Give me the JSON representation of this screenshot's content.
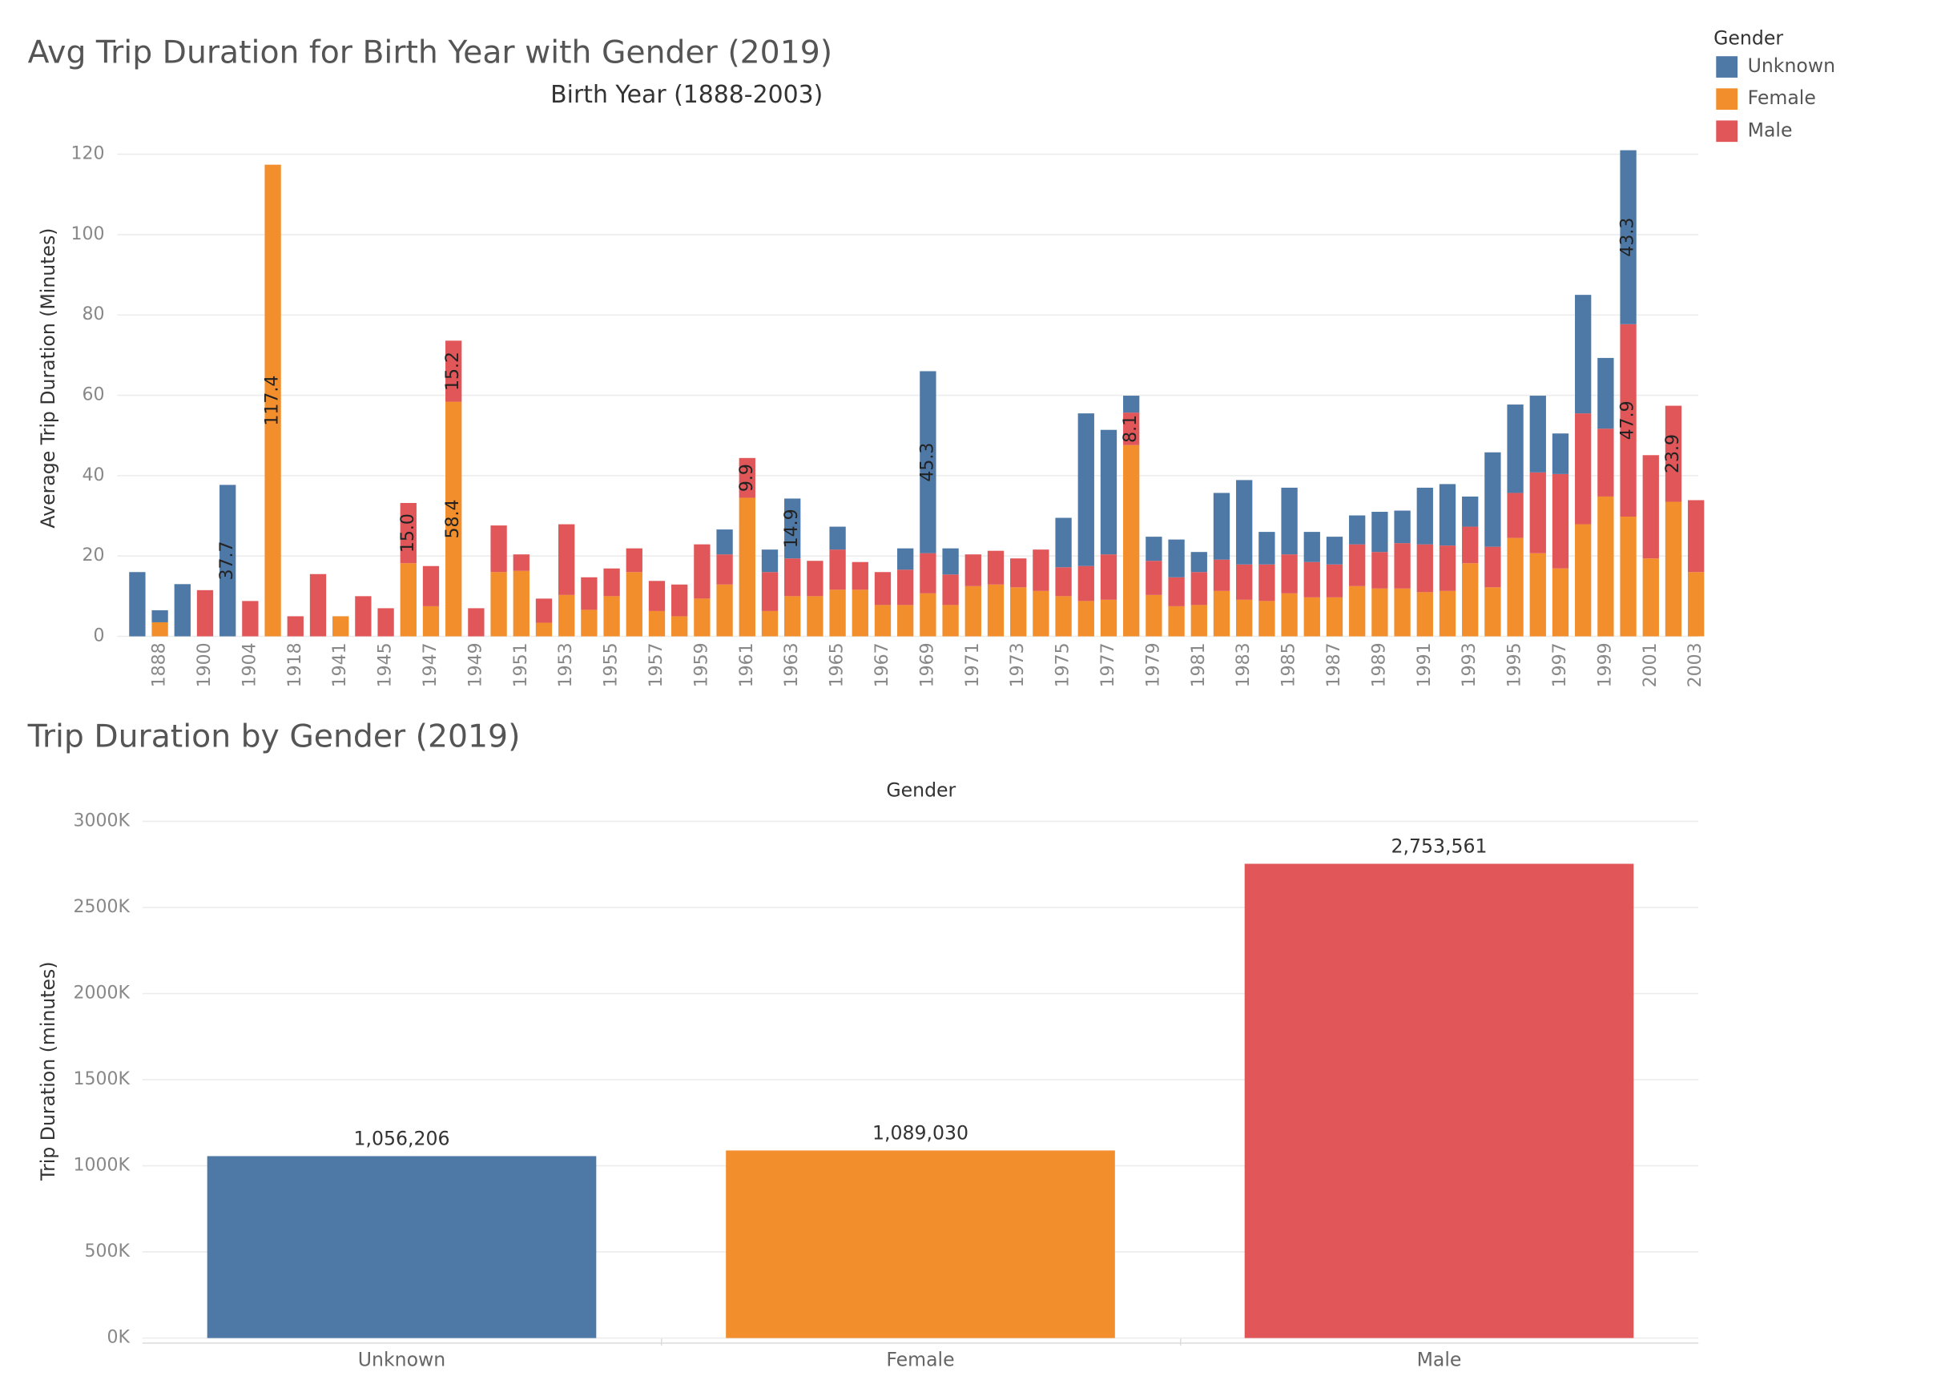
{
  "chart_data": [
    {
      "type": "bar",
      "stacked": true,
      "title": "Avg Trip Duration for Birth Year with Gender (2019)",
      "x_label": "Birth Year (1888-2003)",
      "y_label": "Average Trip Duration (Minutes)",
      "legend_title": "Gender",
      "legend": "top-right",
      "grid": true,
      "categories": [
        null,
        "1888",
        null,
        "1900",
        null,
        "1904",
        null,
        "1918",
        null,
        "1941",
        null,
        "1945",
        null,
        "1947",
        null,
        "1949",
        null,
        "1951",
        null,
        "1953",
        null,
        "1955",
        null,
        "1957",
        null,
        "1959",
        null,
        "1961",
        null,
        "1963",
        null,
        "1965",
        null,
        "1967",
        null,
        "1969",
        null,
        "1971",
        null,
        "1973",
        null,
        "1975",
        null,
        "1977",
        null,
        "1979",
        null,
        "1981",
        null,
        "1983",
        null,
        "1985",
        null,
        "1987",
        null,
        "1989",
        null,
        "1991",
        null,
        "1993",
        null,
        "1995",
        null,
        "1997",
        null,
        "1999",
        null,
        "2001",
        null,
        "2003"
      ],
      "series": [
        {
          "name": "Unknown",
          "color": "#4e79a7",
          "values": [
            16,
            3,
            13,
            null,
            37.7,
            null,
            null,
            null,
            null,
            null,
            null,
            null,
            null,
            null,
            null,
            null,
            null,
            null,
            null,
            null,
            null,
            null,
            null,
            null,
            null,
            null,
            6.2,
            null,
            5.6,
            14.9,
            null,
            5.7,
            null,
            null,
            5.3,
            45.3,
            6.5,
            null,
            null,
            null,
            null,
            12.3,
            38,
            31,
            4.2,
            6,
            9.4,
            5,
            16.6,
            21,
            8.1,
            16.6,
            7.5,
            6.9,
            7.2,
            10,
            8.1,
            14.1,
            15.3,
            7.5,
            23.5,
            22,
            19.1,
            10.1,
            29.5,
            17.6,
            43.3,
            null,
            null,
            null
          ],
          "value_labels": [
            null,
            null,
            null,
            null,
            "37.7",
            null,
            null,
            null,
            null,
            null,
            null,
            null,
            null,
            null,
            null,
            null,
            null,
            null,
            null,
            null,
            null,
            null,
            null,
            null,
            null,
            null,
            null,
            null,
            null,
            "14.9",
            null,
            null,
            null,
            null,
            null,
            "45.3",
            null,
            null,
            null,
            null,
            null,
            null,
            null,
            null,
            null,
            null,
            null,
            null,
            null,
            null,
            null,
            null,
            null,
            null,
            null,
            null,
            null,
            null,
            null,
            null,
            null,
            null,
            null,
            null,
            null,
            null,
            "43.3",
            null,
            null,
            null
          ]
        },
        {
          "name": "Female",
          "color": "#f28e2b",
          "values": [
            null,
            3.5,
            null,
            null,
            null,
            null,
            117.4,
            null,
            null,
            5,
            null,
            null,
            18.2,
            7.5,
            58.4,
            null,
            16,
            16.3,
            3.4,
            10.3,
            6.6,
            10,
            16,
            6.3,
            5,
            9.4,
            12.9,
            34.5,
            6.3,
            10,
            10,
            11.6,
            11.6,
            7.8,
            7.8,
            10.7,
            7.8,
            12.5,
            12.9,
            12.2,
            11.3,
            10,
            8.8,
            9.1,
            47.6,
            10.3,
            7.5,
            7.8,
            11.3,
            9.1,
            8.8,
            10.7,
            9.7,
            9.7,
            12.5,
            11.9,
            11.9,
            11,
            11.3,
            18.2,
            12.2,
            24.5,
            20.7,
            16.9,
            27.9,
            34.8,
            29.8,
            19.4,
            33.5,
            16
          ],
          "value_labels": [
            null,
            null,
            null,
            null,
            null,
            null,
            "117.4",
            null,
            null,
            null,
            null,
            null,
            null,
            null,
            "58.4",
            null,
            null,
            null,
            null,
            null,
            null,
            null,
            null,
            null,
            null,
            null,
            null,
            null,
            null,
            null,
            null,
            null,
            null,
            null,
            null,
            null,
            null,
            null,
            null,
            null,
            null,
            null,
            null,
            null,
            null,
            null,
            null,
            null,
            null,
            null,
            null,
            null,
            null,
            null,
            null,
            null,
            null,
            null,
            null,
            null,
            null,
            null,
            null,
            null,
            null,
            null,
            null,
            null,
            null,
            null
          ]
        },
        {
          "name": "Male",
          "color": "#e15759",
          "values": [
            null,
            null,
            null,
            11.5,
            null,
            8.8,
            null,
            5,
            15.5,
            null,
            10,
            7,
            15,
            10,
            15.2,
            7,
            11.6,
            4.1,
            6,
            17.6,
            8.1,
            6.9,
            5.9,
            7.5,
            7.9,
            13.5,
            7.5,
            9.9,
            9.7,
            9.4,
            8.8,
            10,
            6.9,
            8.2,
            8.8,
            10,
            7.6,
            7.9,
            8.4,
            7.2,
            10.3,
            7.2,
            8.7,
            11.3,
            8.1,
            8.5,
            7.2,
            8.2,
            7.8,
            8.8,
            9.1,
            9.7,
            8.8,
            8.2,
            10.4,
            9.1,
            11.3,
            11.9,
            11.3,
            9.1,
            10.1,
            11.2,
            20.1,
            23.5,
            27.6,
            16.9,
            47.9,
            25.7,
            23.9,
            17.9
          ],
          "value_labels": [
            null,
            null,
            null,
            null,
            null,
            null,
            null,
            null,
            null,
            null,
            null,
            null,
            "15.0",
            null,
            "15.2",
            null,
            null,
            null,
            null,
            null,
            null,
            null,
            null,
            null,
            null,
            null,
            null,
            "9.9",
            null,
            null,
            null,
            null,
            null,
            null,
            null,
            null,
            null,
            null,
            null,
            null,
            null,
            null,
            null,
            null,
            "8.1",
            null,
            null,
            null,
            null,
            null,
            null,
            null,
            null,
            null,
            null,
            null,
            null,
            null,
            null,
            null,
            null,
            null,
            null,
            null,
            null,
            null,
            "47.9",
            null,
            "23.9",
            null
          ]
        }
      ],
      "ylim": [
        0,
        127
      ],
      "yticks": [
        0,
        20,
        40,
        60,
        80,
        100,
        120
      ]
    },
    {
      "type": "bar",
      "title": "Trip Duration by Gender (2019)",
      "x_label": "Gender",
      "y_label": "Trip Duration (minutes)",
      "grid": true,
      "categories": [
        "Unknown",
        "Female",
        "Male"
      ],
      "values": [
        1056206,
        1089030,
        2753561
      ],
      "value_labels": [
        "1,056,206",
        "1,089,030",
        "2,753,561"
      ],
      "colors": [
        "#4e79a7",
        "#f28e2b",
        "#e15759"
      ],
      "ylim": [
        0,
        3050000
      ],
      "yticks": [
        {
          "value": 0,
          "label": "0K"
        },
        {
          "value": 500000,
          "label": "500K"
        },
        {
          "value": 1000000,
          "label": "1000K"
        },
        {
          "value": 1500000,
          "label": "1500K"
        },
        {
          "value": 2000000,
          "label": "2000K"
        },
        {
          "value": 2500000,
          "label": "2500K"
        },
        {
          "value": 3000000,
          "label": "3000K"
        }
      ]
    }
  ]
}
